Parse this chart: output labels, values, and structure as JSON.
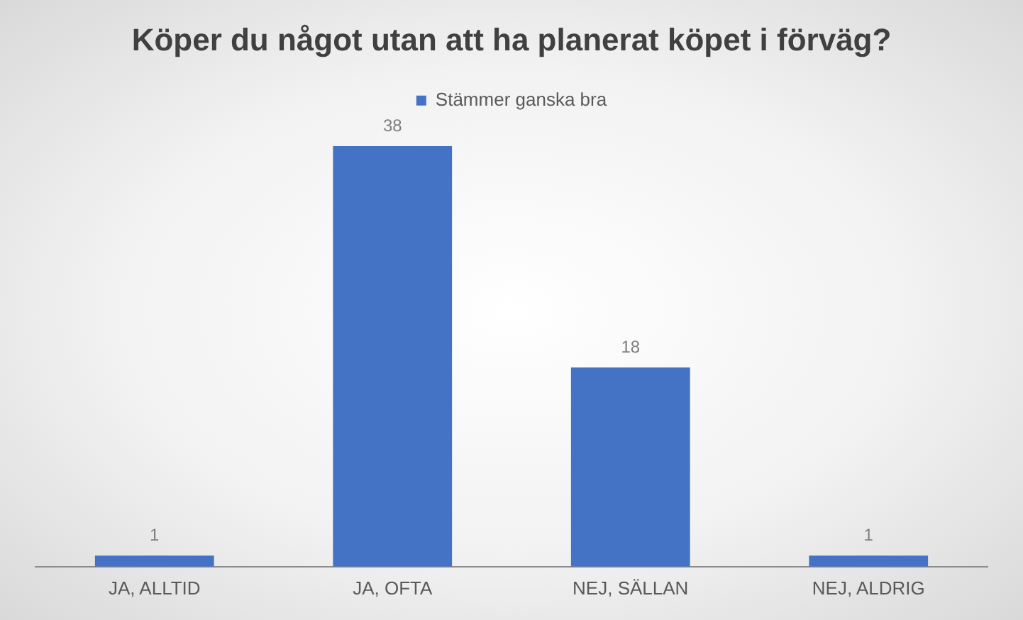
{
  "chart_data": {
    "type": "bar",
    "title": "Köper du något utan att ha planerat köpet i förväg?",
    "categories": [
      "JA, ALLTID",
      "JA, OFTA",
      "NEJ, SÄLLAN",
      "NEJ, ALDRIG"
    ],
    "series": [
      {
        "name": "Stämmer ganska bra",
        "color": "#4472c4",
        "values": [
          1,
          38,
          18,
          1
        ]
      }
    ],
    "data_labels": true,
    "legend": "top",
    "grid": false,
    "tick_labels": "x"
  }
}
